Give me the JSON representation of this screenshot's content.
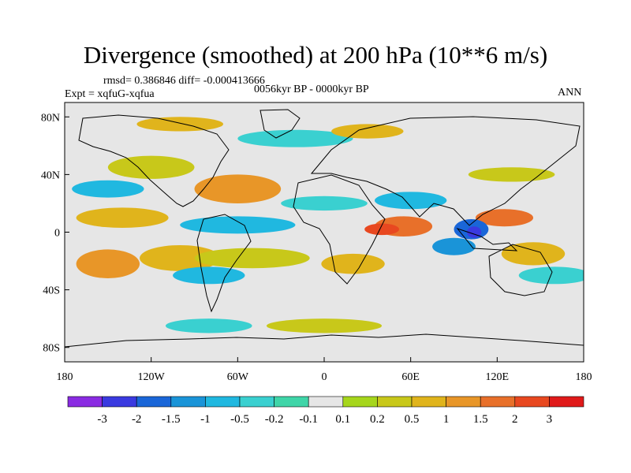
{
  "plot": {
    "title": "Divergence (smoothed) at 200 hPa (10**6 m/s)",
    "stats_label": "rmsd= 0.386846 diff= -0.000413666",
    "expt_label": "Expt = xqfuG-xqfua",
    "period_label": "0056kyr BP - 0000kyr BP",
    "season_label": "ANN"
  },
  "map_data": {
    "projection": "cylindrical equidistant",
    "lon_range": [
      -180,
      180
    ],
    "lat_range": [
      -90,
      90
    ],
    "x_ticks": [
      {
        "value": -180,
        "label": "180"
      },
      {
        "value": -120,
        "label": "120W"
      },
      {
        "value": -60,
        "label": "60W"
      },
      {
        "value": 0,
        "label": "0"
      },
      {
        "value": 60,
        "label": "60E"
      },
      {
        "value": 120,
        "label": "120E"
      },
      {
        "value": 180,
        "label": "180"
      }
    ],
    "y_ticks": [
      {
        "value": 80,
        "label": "80N"
      },
      {
        "value": 40,
        "label": "40N"
      },
      {
        "value": 0,
        "label": "0"
      },
      {
        "value": -40,
        "label": "40S"
      },
      {
        "value": -80,
        "label": "80S"
      }
    ],
    "colorbar": {
      "levels": [
        "-3",
        "-2",
        "-1.5",
        "-1",
        "-0.5",
        "-0.2",
        "-0.1",
        "0.1",
        "0.2",
        "0.5",
        "1",
        "1.5",
        "2",
        "3"
      ],
      "colors": [
        "#8a2be2",
        "#3a3ae0",
        "#1a66d8",
        "#1a94d8",
        "#20b8e0",
        "#3ad0d0",
        "#3fd5a8",
        "#e6e6e6",
        "#a6d61c",
        "#c8c81a",
        "#e0b41c",
        "#e89628",
        "#e8702a",
        "#e84820",
        "#e01a1a"
      ]
    },
    "fields": [
      {
        "lon": -140,
        "lat": 10,
        "rx": 32,
        "ry": 7,
        "level": 10
      },
      {
        "lon": -150,
        "lat": -22,
        "rx": 22,
        "ry": 10,
        "level": 11
      },
      {
        "lon": -100,
        "lat": -18,
        "rx": 28,
        "ry": 9,
        "level": 10
      },
      {
        "lon": -60,
        "lat": 30,
        "rx": 30,
        "ry": 10,
        "level": 11
      },
      {
        "lon": -50,
        "lat": -18,
        "rx": 40,
        "ry": 7,
        "level": 9
      },
      {
        "lon": 20,
        "lat": -22,
        "rx": 22,
        "ry": 7,
        "level": 10
      },
      {
        "lon": 55,
        "lat": 4,
        "rx": 20,
        "ry": 7,
        "level": 12
      },
      {
        "lon": 40,
        "lat": 2,
        "rx": 12,
        "ry": 4,
        "level": 13
      },
      {
        "lon": 125,
        "lat": 10,
        "rx": 20,
        "ry": 6,
        "level": 12
      },
      {
        "lon": 145,
        "lat": -15,
        "rx": 22,
        "ry": 8,
        "level": 10
      },
      {
        "lon": 130,
        "lat": 40,
        "rx": 30,
        "ry": 5,
        "level": 9
      },
      {
        "lon": -120,
        "lat": 45,
        "rx": 30,
        "ry": 8,
        "level": 9
      },
      {
        "lon": -150,
        "lat": 30,
        "rx": 25,
        "ry": 6,
        "level": 4
      },
      {
        "lon": -60,
        "lat": 5,
        "rx": 40,
        "ry": 6,
        "level": 4
      },
      {
        "lon": -80,
        "lat": -30,
        "rx": 25,
        "ry": 6,
        "level": 4
      },
      {
        "lon": 0,
        "lat": 20,
        "rx": 30,
        "ry": 5,
        "level": 5
      },
      {
        "lon": 60,
        "lat": 22,
        "rx": 25,
        "ry": 6,
        "level": 4
      },
      {
        "lon": 102,
        "lat": 2,
        "rx": 12,
        "ry": 7,
        "level": 2
      },
      {
        "lon": 104,
        "lat": 0,
        "rx": 5,
        "ry": 4,
        "level": 1
      },
      {
        "lon": 90,
        "lat": -10,
        "rx": 15,
        "ry": 6,
        "level": 3
      },
      {
        "lon": 160,
        "lat": -30,
        "rx": 25,
        "ry": 6,
        "level": 5
      },
      {
        "lon": -20,
        "lat": 65,
        "rx": 40,
        "ry": 6,
        "level": 5
      },
      {
        "lon": 30,
        "lat": 70,
        "rx": 25,
        "ry": 5,
        "level": 10
      },
      {
        "lon": -100,
        "lat": 75,
        "rx": 30,
        "ry": 5,
        "level": 10
      },
      {
        "lon": 0,
        "lat": -65,
        "rx": 40,
        "ry": 5,
        "level": 9
      },
      {
        "lon": -80,
        "lat": -65,
        "rx": 30,
        "ry": 5,
        "level": 5
      }
    ]
  }
}
